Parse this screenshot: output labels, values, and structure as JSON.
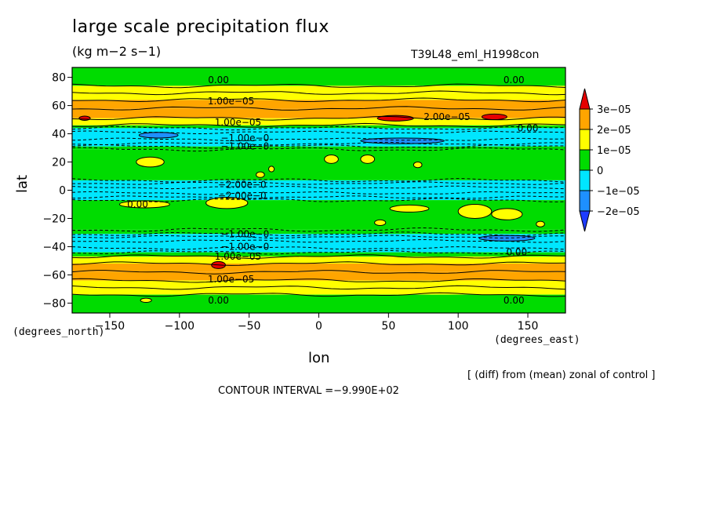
{
  "header": {
    "title": "large scale precipitation flux",
    "units": "(kg m−2 s−1)",
    "run_id": "T39L48_eml_H1998con"
  },
  "footer": {
    "diff_note": "[ (diff) from (mean) zonal of control ]",
    "contour_interval": "CONTOUR INTERVAL =−9.990E+02"
  },
  "chart_data": {
    "type": "heatmap",
    "title": "large scale precipitation flux",
    "subtitle": "(kg m−2 s−1)",
    "xlabel": "lon",
    "ylabel": "lat",
    "x_units": "(degrees_east)",
    "y_units": "(degrees_north)",
    "xlim": [
      -177,
      177
    ],
    "ylim": [
      -87,
      87
    ],
    "xticks": [
      -150,
      -100,
      -50,
      0,
      50,
      100,
      150
    ],
    "yticks": [
      -80,
      -60,
      -40,
      -20,
      0,
      20,
      40,
      60,
      80
    ],
    "xtick_labels": [
      "−150",
      "−100",
      "−50",
      "0",
      "50",
      "100",
      "150"
    ],
    "ytick_labels": [
      "−80",
      "−60",
      "−40",
      "−20",
      "0",
      "20",
      "40",
      "60",
      "80"
    ],
    "colorbar": {
      "levels": [
        -3e-05,
        -2e-05,
        -1e-05,
        0,
        1e-05,
        2e-05,
        3e-05
      ],
      "tick_labels": [
        "3e−05",
        "2e−05",
        "1e−05",
        "0",
        "−1e−05",
        "−2e−05"
      ],
      "colors": [
        "#1e3cff",
        "#1e90ff",
        "#00e6ff",
        "#00dc00",
        "#ffff00",
        "#ffa500",
        "#e60000"
      ]
    },
    "zonal_bands": [
      {
        "lat": [
          74,
          87
        ],
        "value": -5e-06
      },
      {
        "lat": [
          69,
          74
        ],
        "value": 5e-06
      },
      {
        "lat": [
          64,
          69
        ],
        "value": 5e-06
      },
      {
        "lat": [
          58,
          64
        ],
        "value": 1.5e-05
      },
      {
        "lat": [
          51,
          58
        ],
        "value": 1.5e-05
      },
      {
        "lat": [
          46,
          51
        ],
        "value": 5e-06
      },
      {
        "lat": [
          44,
          46
        ],
        "value": -5e-06
      },
      {
        "lat": [
          31,
          44
        ],
        "value": -1.5e-05
      },
      {
        "lat": [
          29,
          31
        ],
        "value": -5e-06
      },
      {
        "lat": [
          7,
          29
        ],
        "value": -5e-06
      },
      {
        "lat": [
          -7,
          7
        ],
        "value": -1.5e-05
      },
      {
        "lat": [
          -28,
          -7
        ],
        "value": -5e-06
      },
      {
        "lat": [
          -31,
          -28
        ],
        "value": -5e-06
      },
      {
        "lat": [
          -44,
          -31
        ],
        "value": -1.5e-05
      },
      {
        "lat": [
          -47,
          -44
        ],
        "value": -5e-06
      },
      {
        "lat": [
          -52,
          -47
        ],
        "value": 5e-06
      },
      {
        "lat": [
          -58,
          -52
        ],
        "value": 1.5e-05
      },
      {
        "lat": [
          -64,
          -58
        ],
        "value": 1.5e-05
      },
      {
        "lat": [
          -69,
          -64
        ],
        "value": 5e-06
      },
      {
        "lat": [
          -74,
          -69
        ],
        "value": 5e-06
      },
      {
        "lat": [
          -87,
          -74
        ],
        "value": -5e-06
      }
    ],
    "contour_labels": [
      {
        "text": "0.00",
        "lon": -72,
        "lat": 78
      },
      {
        "text": "0.00",
        "lon": 140,
        "lat": 78
      },
      {
        "text": "1.00e−05",
        "lon": -63,
        "lat": 63
      },
      {
        "text": "2.00e−05",
        "lon": 92,
        "lat": 52
      },
      {
        "text": "1.00e−05",
        "lon": -58,
        "lat": 48
      },
      {
        "text": "0.00",
        "lon": 150,
        "lat": 44
      },
      {
        "text": "−1.00e−0",
        "lon": -53,
        "lat": 37
      },
      {
        "text": "−1.00e−0",
        "lon": -53,
        "lat": 31
      },
      {
        "text": "−2.00e−0",
        "lon": -55,
        "lat": 4
      },
      {
        "text": "−2.00e−0",
        "lon": -55,
        "lat": -4
      },
      {
        "text": "0.00",
        "lon": -130,
        "lat": -10
      },
      {
        "text": "−1.00e−0",
        "lon": -53,
        "lat": -31
      },
      {
        "text": "−1.00e−0",
        "lon": -53,
        "lat": -40
      },
      {
        "text": "1.00e−05",
        "lon": -58,
        "lat": -47
      },
      {
        "text": "0.00",
        "lon": 142,
        "lat": -44
      },
      {
        "text": "1.00e−05",
        "lon": -63,
        "lat": -63
      },
      {
        "text": "0.00",
        "lon": -72,
        "lat": -78
      },
      {
        "text": "0.00",
        "lon": 140,
        "lat": -78
      }
    ],
    "features": [
      {
        "lon": -121,
        "lat": 20,
        "rx": 10,
        "ry": 3.5,
        "value": 5e-06
      },
      {
        "lon": -42,
        "lat": 11,
        "rx": 3,
        "ry": 2,
        "value": 5e-06
      },
      {
        "lon": -34,
        "lat": 15,
        "rx": 2,
        "ry": 2,
        "value": 5e-06
      },
      {
        "lon": 9,
        "lat": 22,
        "rx": 5,
        "ry": 3,
        "value": 5e-06
      },
      {
        "lon": 35,
        "lat": 22,
        "rx": 5,
        "ry": 3,
        "value": 5e-06
      },
      {
        "lon": 71,
        "lat": 18,
        "rx": 3,
        "ry": 2,
        "value": 5e-06
      },
      {
        "lon": -66,
        "lat": -9,
        "rx": 15,
        "ry": 4,
        "value": 5e-06
      },
      {
        "lon": -125,
        "lat": -10,
        "rx": 18,
        "ry": 2.5,
        "value": 5e-06
      },
      {
        "lon": 65,
        "lat": -13,
        "rx": 14,
        "ry": 2.5,
        "value": 5e-06
      },
      {
        "lon": 112,
        "lat": -15,
        "rx": 12,
        "ry": 5,
        "value": 5e-06
      },
      {
        "lon": 135,
        "lat": -17,
        "rx": 11,
        "ry": 4,
        "value": 5e-06
      },
      {
        "lon": 44,
        "lat": -23,
        "rx": 4,
        "ry": 2,
        "value": 5e-06
      },
      {
        "lon": 159,
        "lat": -24,
        "rx": 3,
        "ry": 2,
        "value": 5e-06
      },
      {
        "lon": -72,
        "lat": -53,
        "rx": 5,
        "ry": 2.5,
        "value": 2.5e-05
      },
      {
        "lon": 55,
        "lat": 51,
        "rx": 13,
        "ry": 2,
        "value": 2.5e-05
      },
      {
        "lon": 126,
        "lat": 52,
        "rx": 9,
        "ry": 2,
        "value": 2.5e-05
      },
      {
        "lon": -168,
        "lat": 51,
        "rx": 4,
        "ry": 1.5,
        "value": 2.5e-05
      },
      {
        "lon": -124,
        "lat": -78,
        "rx": 4,
        "ry": 1.5,
        "value": 5e-06
      },
      {
        "lon": -115,
        "lat": 39,
        "rx": 14,
        "ry": 2,
        "value": -2.5e-05
      },
      {
        "lon": 60,
        "lat": 35,
        "rx": 30,
        "ry": 2,
        "value": -2.5e-05
      },
      {
        "lon": 135,
        "lat": -34,
        "rx": 20,
        "ry": 2,
        "value": -2.5e-05
      }
    ]
  }
}
